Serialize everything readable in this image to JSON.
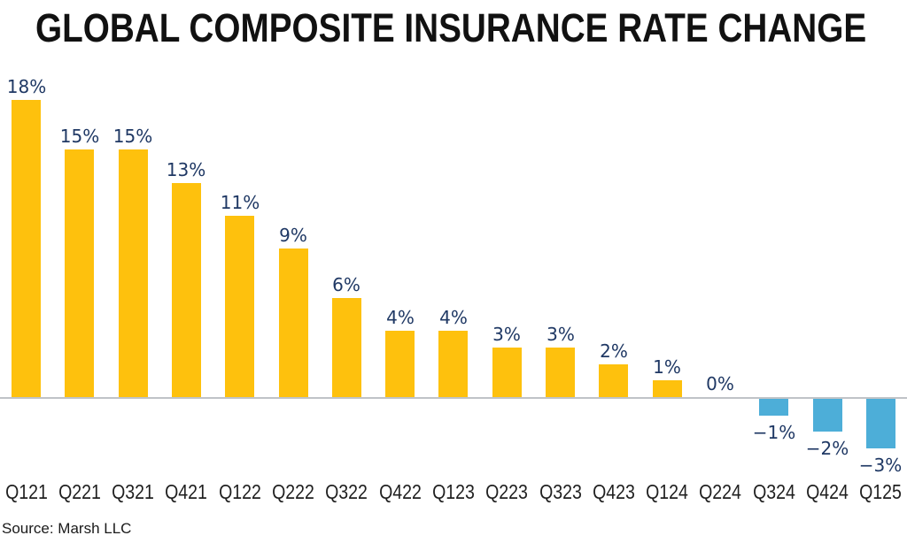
{
  "header": {
    "title": "GLOBAL COMPOSITE INSURANCE RATE CHANGE"
  },
  "footer": {
    "source": "Source: Marsh LLC"
  },
  "chart_data": {
    "type": "bar",
    "title": "GLOBAL COMPOSITE INSURANCE RATE CHANGE",
    "xlabel": "",
    "ylabel": "",
    "categories": [
      "Q121",
      "Q221",
      "Q321",
      "Q421",
      "Q122",
      "Q222",
      "Q322",
      "Q422",
      "Q123",
      "Q223",
      "Q323",
      "Q423",
      "Q124",
      "Q224",
      "Q324",
      "Q424",
      "Q125"
    ],
    "values": [
      18,
      15,
      15,
      13,
      11,
      9,
      6,
      4,
      4,
      3,
      3,
      2,
      1,
      0,
      -1,
      -2,
      -3
    ],
    "value_labels": [
      "18%",
      "15%",
      "15%",
      "13%",
      "11%",
      "9%",
      "6%",
      "4%",
      "4%",
      "3%",
      "3%",
      "2%",
      "1%",
      "0%",
      "−1%",
      "−2%",
      "−3%"
    ],
    "ylim": [
      -4,
      19
    ],
    "grid": false,
    "legend": "none",
    "baseline": 0,
    "source": "Source: Marsh LLC",
    "colors": {
      "positive_bar": "#FEC10D",
      "negative_bar": "#4DAED8",
      "value_label": "#1F3864",
      "category_label": "#1F1F1F",
      "axis_line": "#BFC3C7",
      "title": "#111111"
    }
  }
}
